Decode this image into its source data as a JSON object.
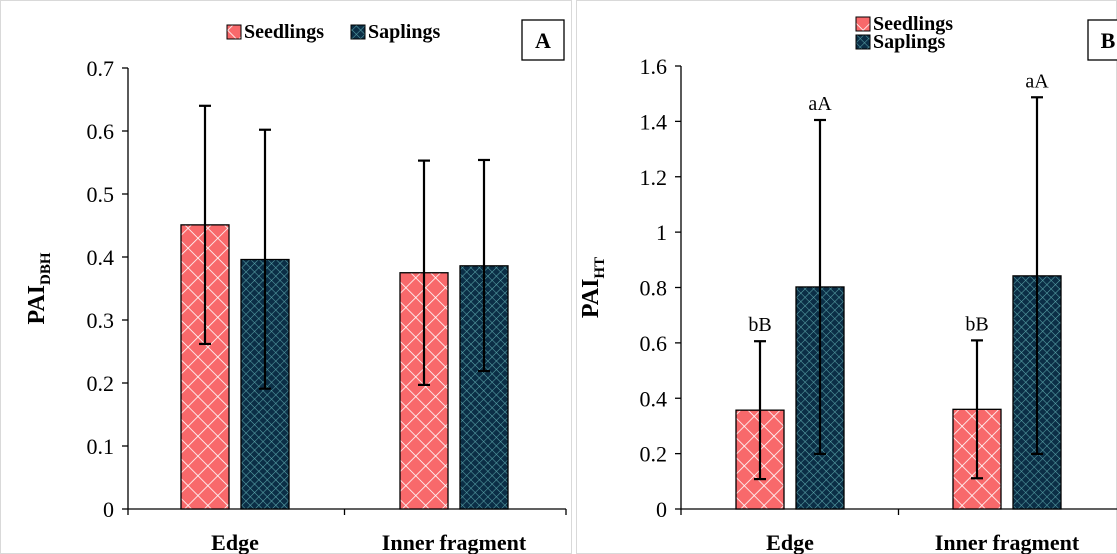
{
  "patterns": {
    "seedlings": {
      "fill": "#f8696b",
      "line": "#ffffff"
    },
    "saplings": {
      "fill": "#0b2e46",
      "line": "#5aa3a8"
    }
  },
  "chart_data": [
    {
      "type": "bar",
      "panel_label": "A",
      "categories": [
        "Edge",
        "Inner fragment"
      ],
      "ylabel_main": "PAI",
      "ylabel_sub": "DBH",
      "ylim": [
        0,
        0.7
      ],
      "yticks": [
        0,
        0.1,
        0.2,
        0.3,
        0.4,
        0.5,
        0.6,
        0.7
      ],
      "legend": [
        "Seedlings",
        "Saplings"
      ],
      "legend_position": "top-center",
      "series": [
        {
          "name": "Seedlings",
          "values": [
            0.451,
            0.375
          ],
          "err_low": [
            0.262,
            0.197
          ],
          "err_high": [
            0.64,
            0.553
          ],
          "labels": [
            "",
            ""
          ]
        },
        {
          "name": "Saplings",
          "values": [
            0.396,
            0.386
          ],
          "err_low": [
            0.191,
            0.219
          ],
          "err_high": [
            0.602,
            0.554
          ],
          "labels": [
            "",
            ""
          ]
        }
      ]
    },
    {
      "type": "bar",
      "panel_label": "B",
      "categories": [
        "Edge",
        "Inner fragment"
      ],
      "ylabel_main": "PAI",
      "ylabel_sub": "HT",
      "ylim": [
        0,
        1.6
      ],
      "yticks": [
        0,
        0.2,
        0.4,
        0.6,
        0.8,
        1,
        1.2,
        1.4,
        1.6
      ],
      "legend": [
        "Seedlings",
        "Saplings"
      ],
      "legend_position": "top-center",
      "series": [
        {
          "name": "Seedlings",
          "values": [
            0.357,
            0.36
          ],
          "err_low": [
            0.108,
            0.111
          ],
          "err_high": [
            0.606,
            0.609
          ],
          "labels": [
            "bB",
            "bB"
          ]
        },
        {
          "name": "Saplings",
          "values": [
            0.802,
            0.842
          ],
          "err_low": [
            0.199,
            0.199
          ],
          "err_high": [
            1.405,
            1.487
          ],
          "labels": [
            "aA",
            "aA"
          ]
        }
      ]
    }
  ]
}
